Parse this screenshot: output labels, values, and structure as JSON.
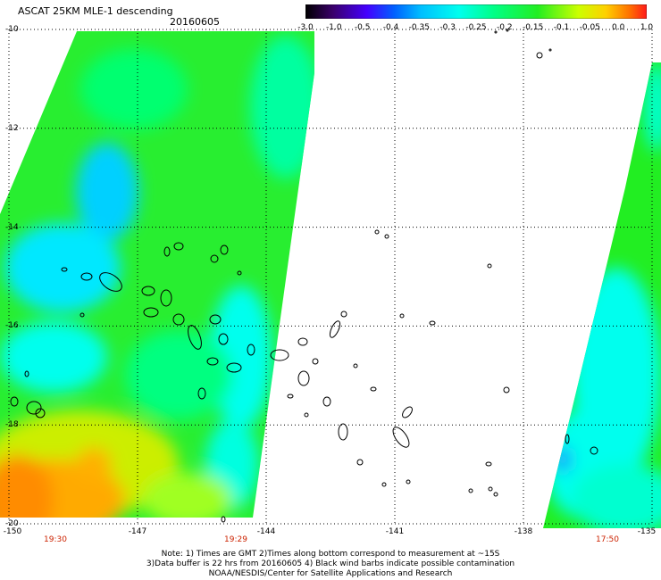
{
  "header": {
    "title": "ASCAT 25KM MLE-1 descending",
    "date": "20160605"
  },
  "colorbar": {
    "ticks": [
      "-3.0",
      "-1.0",
      "-0.5",
      "-0.4",
      "-0.35",
      "-0.3",
      "-0.25",
      "-0.2",
      "-0.15",
      "-0.1",
      "-0.05",
      "0.0",
      "1.0"
    ]
  },
  "axes": {
    "lat_labels": [
      "-10",
      "-12",
      "-14",
      "-16",
      "-18",
      "-20"
    ],
    "lon_labels": [
      "-150",
      "-147",
      "-144",
      "-141",
      "-138",
      "-135"
    ],
    "lat_range": [
      -20,
      -10
    ],
    "lon_range": [
      -150,
      -135
    ],
    "grid": true
  },
  "swath_times": [
    "19:30",
    "19:29",
    "17:50"
  ],
  "notes": {
    "line1": "Note: 1) Times are GMT 2)Times along bottom correspond to measurement at ~15S",
    "line2": "3)Data buffer is 22 hrs from 20160605 4) Black wind barbs indicate possible contamination",
    "line3": "NOAA/NESDIS/Center for Satellite Applications and Research"
  },
  "colors": {
    "swath_green": "#22ee22",
    "swath_cyan": "#00ffee",
    "swath_blue": "#1e90ff",
    "swath_yellow": "#ddee00",
    "swath_orange": "#ff8800",
    "time_label": "#cc2200"
  }
}
